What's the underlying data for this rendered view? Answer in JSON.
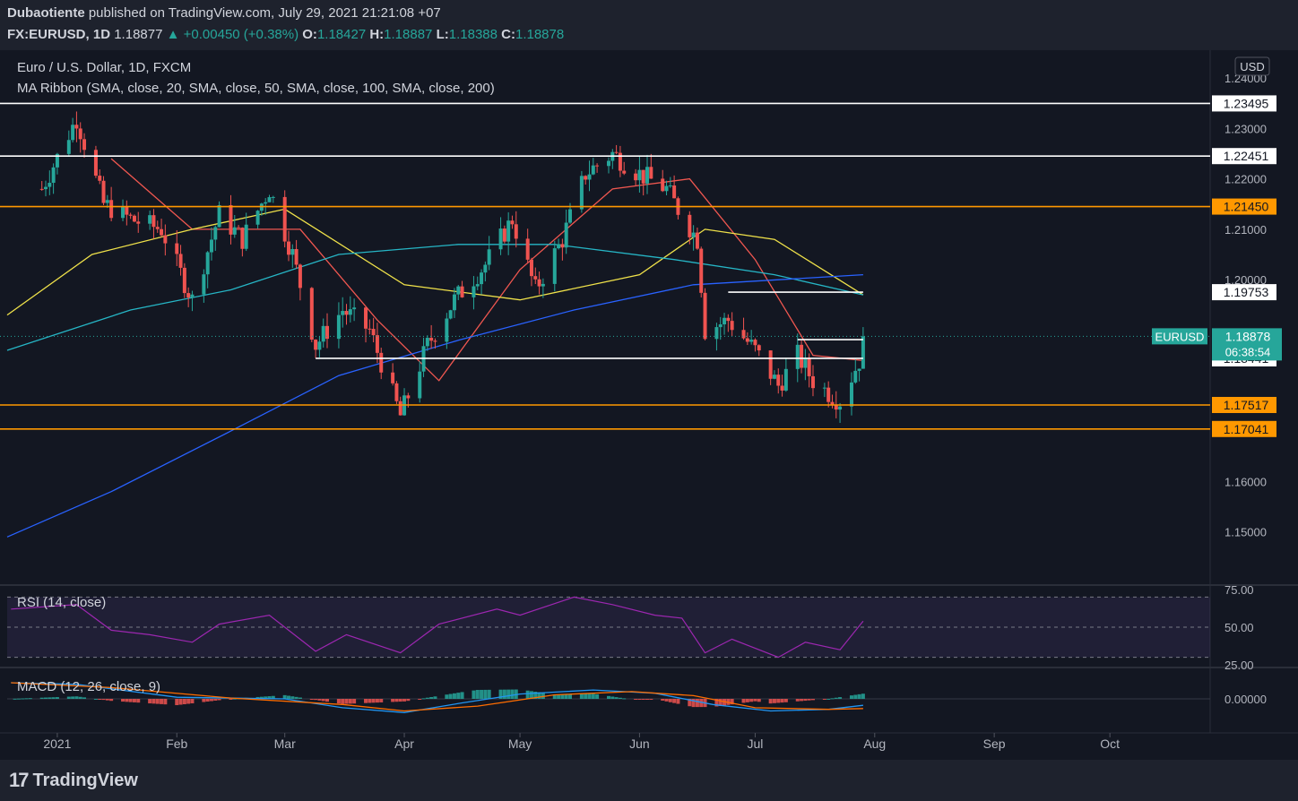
{
  "header": {
    "author": "Dubaotiente",
    "published_text": "published on TradingView.com, July 29, 2021 21:21:08 +07",
    "symbol": "FX:EURUSD",
    "timeframe": "1D",
    "last": "1.18877",
    "arrow": "▲",
    "change": "+0.00450 (+0.38%)",
    "o_label": "O:",
    "o": "1.18427",
    "h_label": "H:",
    "h": "1.18887",
    "l_label": "L:",
    "l": "1.18388",
    "c_label": "C:",
    "c": "1.18878"
  },
  "legend": {
    "title": "Euro / U.S. Dollar, 1D, FXCM",
    "ma": "MA Ribbon (SMA, close, 20, SMA, close, 50, SMA, close, 100, SMA, close, 200)",
    "rsi": "RSI (14, close)",
    "macd": "MACD (12, 26, close, 9)"
  },
  "footer": {
    "logo_mark": "17",
    "logo_text": "TradingView"
  },
  "colors": {
    "bg": "#131722",
    "up": "#26a69a",
    "down": "#ef5350",
    "orange": "#ff9800",
    "white": "#ffffff",
    "sma20": "#f05750",
    "sma50": "#f0e24a",
    "sma100": "#26b6c6",
    "sma200": "#2962ff",
    "rsi": "#9c27b0",
    "macd": "#2196f3",
    "signal": "#ff6d00"
  },
  "chart_data": {
    "type": "candlestick",
    "currency_label": "USD",
    "price_axis": {
      "min": 1.14,
      "max": 1.24,
      "ticks": [
        "1.24000",
        "1.23000",
        "1.22000",
        "1.21000",
        "1.20000",
        "1.16000",
        "1.15000"
      ]
    },
    "time_axis": [
      {
        "label": "2021",
        "x": "2021-01-01"
      },
      {
        "label": "Feb",
        "x": "2021-02-01"
      },
      {
        "label": "Mar",
        "x": "2021-03-01"
      },
      {
        "label": "Apr",
        "x": "2021-04-01"
      },
      {
        "label": "May",
        "x": "2021-05-01"
      },
      {
        "label": "Jun",
        "x": "2021-06-01"
      },
      {
        "label": "Jul",
        "x": "2021-07-01"
      },
      {
        "label": "Aug",
        "x": "2021-08-01"
      },
      {
        "label": "Sep",
        "x": "2021-09-01"
      },
      {
        "label": "Oct",
        "x": "2021-10-01"
      }
    ],
    "x_range": [
      "2020-12-19",
      "2021-10-27"
    ],
    "levels": [
      {
        "price": 1.23495,
        "label": "1.23495",
        "color": "white",
        "type": "line"
      },
      {
        "price": 1.22451,
        "label": "1.22451",
        "color": "white",
        "type": "line"
      },
      {
        "price": 1.2145,
        "label": "1.21450",
        "color": "orange",
        "type": "line"
      },
      {
        "price": 1.19753,
        "label": "1.19753",
        "color": "white",
        "type": "ray",
        "from": "2021-06-24",
        "to": "2021-07-29"
      },
      {
        "price": 1.18812,
        "label": "1.18812",
        "color": "white",
        "type": "ray",
        "from": "2021-07-12",
        "to": "2021-07-29"
      },
      {
        "price": 1.18441,
        "label": "1.18441",
        "color": "white",
        "type": "ray",
        "from": "2021-03-09",
        "to": "2021-07-29"
      },
      {
        "price": 1.17517,
        "label": "1.17517",
        "color": "orange",
        "type": "line"
      },
      {
        "price": 1.17041,
        "label": "1.17041",
        "color": "orange",
        "type": "line"
      }
    ],
    "current": {
      "symbol": "EURUSD",
      "price": 1.18878,
      "label": "1.18878",
      "countdown": "06:38:54"
    },
    "ohlc_anchors": [
      [
        "2020-12-28",
        1.218
      ],
      [
        "2021-01-06",
        1.232
      ],
      [
        "2021-01-13",
        1.215
      ],
      [
        "2021-01-20",
        1.212
      ],
      [
        "2021-01-28",
        1.21
      ],
      [
        "2021-02-05",
        1.196
      ],
      [
        "2021-02-12",
        1.213
      ],
      [
        "2021-02-18",
        1.208
      ],
      [
        "2021-02-25",
        1.218
      ],
      [
        "2021-03-03",
        1.205
      ],
      [
        "2021-03-09",
        1.187
      ],
      [
        "2021-03-16",
        1.194
      ],
      [
        "2021-03-23",
        1.19
      ],
      [
        "2021-03-31",
        1.173
      ],
      [
        "2021-04-07",
        1.187
      ],
      [
        "2021-04-14",
        1.196
      ],
      [
        "2021-04-22",
        1.203
      ],
      [
        "2021-04-29",
        1.212
      ],
      [
        "2021-05-05",
        1.198
      ],
      [
        "2021-05-12",
        1.208
      ],
      [
        "2021-05-18",
        1.221
      ],
      [
        "2021-05-25",
        1.225
      ],
      [
        "2021-06-01",
        1.221
      ],
      [
        "2021-06-08",
        1.218
      ],
      [
        "2021-06-11",
        1.214
      ],
      [
        "2021-06-16",
        1.208
      ],
      [
        "2021-06-18",
        1.19
      ],
      [
        "2021-06-24",
        1.192
      ],
      [
        "2021-07-01",
        1.186
      ],
      [
        "2021-07-07",
        1.179
      ],
      [
        "2021-07-12",
        1.185
      ],
      [
        "2021-07-16",
        1.18
      ],
      [
        "2021-07-21",
        1.177
      ],
      [
        "2021-07-23",
        1.176
      ],
      [
        "2021-07-28",
        1.184
      ],
      [
        "2021-07-29",
        1.18878
      ]
    ],
    "ma": {
      "sma20": [
        [
          "2021-01-15",
          1.224
        ],
        [
          "2021-02-05",
          1.21
        ],
        [
          "2021-03-05",
          1.21
        ],
        [
          "2021-03-25",
          1.192
        ],
        [
          "2021-04-10",
          1.18
        ],
        [
          "2021-05-01",
          1.202
        ],
        [
          "2021-05-25",
          1.218
        ],
        [
          "2021-06-14",
          1.22
        ],
        [
          "2021-07-01",
          1.204
        ],
        [
          "2021-07-16",
          1.185
        ],
        [
          "2021-07-29",
          1.184
        ]
      ],
      "sma50": [
        [
          "2020-12-19",
          1.193
        ],
        [
          "2021-01-10",
          1.205
        ],
        [
          "2021-02-05",
          1.21
        ],
        [
          "2021-03-01",
          1.214
        ],
        [
          "2021-04-01",
          1.199
        ],
        [
          "2021-05-01",
          1.196
        ],
        [
          "2021-06-01",
          1.201
        ],
        [
          "2021-06-18",
          1.21
        ],
        [
          "2021-07-06",
          1.208
        ],
        [
          "2021-07-29",
          1.197
        ]
      ],
      "sma100": [
        [
          "2020-12-19",
          1.186
        ],
        [
          "2021-01-20",
          1.194
        ],
        [
          "2021-02-15",
          1.198
        ],
        [
          "2021-03-15",
          1.205
        ],
        [
          "2021-04-15",
          1.207
        ],
        [
          "2021-05-10",
          1.207
        ],
        [
          "2021-06-10",
          1.204
        ],
        [
          "2021-07-06",
          1.201
        ],
        [
          "2021-07-29",
          1.197
        ]
      ],
      "sma200": [
        [
          "2020-12-19",
          1.149
        ],
        [
          "2021-01-15",
          1.158
        ],
        [
          "2021-02-15",
          1.17
        ],
        [
          "2021-03-15",
          1.181
        ],
        [
          "2021-04-15",
          1.188
        ],
        [
          "2021-05-15",
          1.194
        ],
        [
          "2021-06-15",
          1.199
        ],
        [
          "2021-07-29",
          1.201
        ]
      ]
    },
    "rsi": {
      "min": 25,
      "max": 75,
      "ticks": [
        "75.00",
        "50.00",
        "25.00"
      ],
      "upper": 70,
      "mid": 50,
      "lower": 30,
      "values": [
        [
          "2020-12-20",
          62
        ],
        [
          "2021-01-06",
          65
        ],
        [
          "2021-01-15",
          48
        ],
        [
          "2021-01-25",
          45
        ],
        [
          "2021-02-05",
          40
        ],
        [
          "2021-02-12",
          52
        ],
        [
          "2021-02-25",
          58
        ],
        [
          "2021-03-09",
          34
        ],
        [
          "2021-03-17",
          45
        ],
        [
          "2021-03-31",
          33
        ],
        [
          "2021-04-10",
          52
        ],
        [
          "2021-04-25",
          62
        ],
        [
          "2021-05-01",
          58
        ],
        [
          "2021-05-15",
          70
        ],
        [
          "2021-05-25",
          65
        ],
        [
          "2021-06-05",
          58
        ],
        [
          "2021-06-12",
          56
        ],
        [
          "2021-06-18",
          33
        ],
        [
          "2021-06-25",
          42
        ],
        [
          "2021-07-07",
          30
        ],
        [
          "2021-07-14",
          40
        ],
        [
          "2021-07-23",
          35
        ],
        [
          "2021-07-29",
          54
        ]
      ]
    },
    "macd": {
      "zero_label": "0.00000",
      "macd": [
        [
          "2020-12-20",
          1.0
        ],
        [
          "2021-01-06",
          0.9
        ],
        [
          "2021-02-01",
          0.1
        ],
        [
          "2021-03-01",
          0.0
        ],
        [
          "2021-03-16",
          -0.55
        ],
        [
          "2021-04-01",
          -0.85
        ],
        [
          "2021-04-16",
          -0.25
        ],
        [
          "2021-05-01",
          0.3
        ],
        [
          "2021-05-20",
          0.55
        ],
        [
          "2021-06-05",
          0.35
        ],
        [
          "2021-06-20",
          -0.35
        ],
        [
          "2021-07-05",
          -0.75
        ],
        [
          "2021-07-20",
          -0.65
        ],
        [
          "2021-07-29",
          -0.4
        ]
      ],
      "signal": [
        [
          "2020-12-20",
          1.0
        ],
        [
          "2021-01-15",
          0.7
        ],
        [
          "2021-02-15",
          0.05
        ],
        [
          "2021-03-16",
          -0.35
        ],
        [
          "2021-04-01",
          -0.75
        ],
        [
          "2021-04-20",
          -0.45
        ],
        [
          "2021-05-10",
          0.25
        ],
        [
          "2021-05-30",
          0.45
        ],
        [
          "2021-06-15",
          0.2
        ],
        [
          "2021-07-01",
          -0.55
        ],
        [
          "2021-07-20",
          -0.65
        ],
        [
          "2021-07-29",
          -0.6
        ]
      ]
    }
  }
}
